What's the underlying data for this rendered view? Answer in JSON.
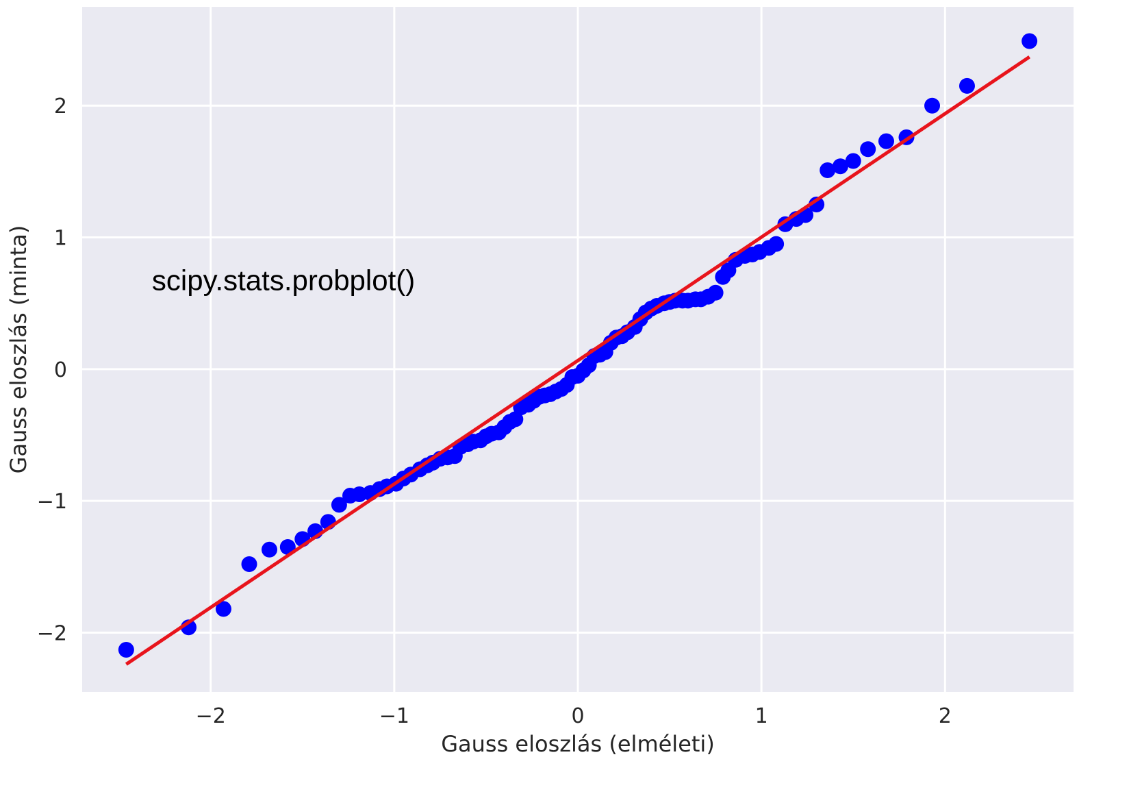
{
  "chart_data": {
    "type": "scatter",
    "title": "",
    "xlabel": "Gauss eloszlás (elméleti)",
    "ylabel": "Gauss eloszlás (minta)",
    "xlim": [
      -2.7,
      2.7
    ],
    "ylim": [
      -2.45,
      2.75
    ],
    "grid": true,
    "background_color": "#eaeaf2",
    "grid_color": "#ffffff",
    "xticks": [
      -2,
      -1,
      0,
      1,
      2
    ],
    "xtick_labels": [
      "−2",
      "−1",
      "0",
      "1",
      "2"
    ],
    "yticks": [
      -2,
      -1,
      0,
      1,
      2
    ],
    "ytick_labels": [
      "−2",
      "−1",
      "0",
      "1",
      "2"
    ],
    "annotation": {
      "text": "scipy.stats.probplot()",
      "x": -2.32,
      "y": 0.6
    },
    "series": [
      {
        "type": "scatter",
        "color": "#0000ff",
        "points": [
          [
            -2.46,
            -2.13
          ],
          [
            -2.12,
            -1.96
          ],
          [
            -1.93,
            -1.82
          ],
          [
            -1.79,
            -1.48
          ],
          [
            -1.68,
            -1.37
          ],
          [
            -1.58,
            -1.35
          ],
          [
            -1.5,
            -1.29
          ],
          [
            -1.43,
            -1.23
          ],
          [
            -1.36,
            -1.16
          ],
          [
            -1.3,
            -1.03
          ],
          [
            -1.24,
            -0.96
          ],
          [
            -1.19,
            -0.95
          ],
          [
            -1.13,
            -0.94
          ],
          [
            -1.08,
            -0.91
          ],
          [
            -1.04,
            -0.89
          ],
          [
            -0.99,
            -0.87
          ],
          [
            -0.95,
            -0.83
          ],
          [
            -0.91,
            -0.8
          ],
          [
            -0.86,
            -0.76
          ],
          [
            -0.82,
            -0.73
          ],
          [
            -0.79,
            -0.71
          ],
          [
            -0.75,
            -0.68
          ],
          [
            -0.71,
            -0.67
          ],
          [
            -0.67,
            -0.66
          ],
          [
            -0.64,
            -0.59
          ],
          [
            -0.6,
            -0.57
          ],
          [
            -0.57,
            -0.55
          ],
          [
            -0.53,
            -0.54
          ],
          [
            -0.5,
            -0.51
          ],
          [
            -0.47,
            -0.49
          ],
          [
            -0.43,
            -0.48
          ],
          [
            -0.4,
            -0.44
          ],
          [
            -0.37,
            -0.4
          ],
          [
            -0.34,
            -0.38
          ],
          [
            -0.31,
            -0.29
          ],
          [
            -0.27,
            -0.27
          ],
          [
            -0.24,
            -0.24
          ],
          [
            -0.21,
            -0.21
          ],
          [
            -0.18,
            -0.2
          ],
          [
            -0.15,
            -0.19
          ],
          [
            -0.12,
            -0.17
          ],
          [
            -0.09,
            -0.15
          ],
          [
            -0.06,
            -0.12
          ],
          [
            -0.03,
            -0.06
          ],
          [
            0.0,
            -0.05
          ],
          [
            0.03,
            -0.01
          ],
          [
            0.06,
            0.03
          ],
          [
            0.09,
            0.1
          ],
          [
            0.12,
            0.11
          ],
          [
            0.15,
            0.13
          ],
          [
            0.18,
            0.2
          ],
          [
            0.21,
            0.24
          ],
          [
            0.24,
            0.25
          ],
          [
            0.27,
            0.28
          ],
          [
            0.31,
            0.32
          ],
          [
            0.34,
            0.38
          ],
          [
            0.37,
            0.43
          ],
          [
            0.4,
            0.46
          ],
          [
            0.43,
            0.48
          ],
          [
            0.47,
            0.5
          ],
          [
            0.5,
            0.51
          ],
          [
            0.53,
            0.52
          ],
          [
            0.57,
            0.52
          ],
          [
            0.6,
            0.52
          ],
          [
            0.64,
            0.53
          ],
          [
            0.67,
            0.53
          ],
          [
            0.71,
            0.55
          ],
          [
            0.75,
            0.58
          ],
          [
            0.79,
            0.7
          ],
          [
            0.82,
            0.75
          ],
          [
            0.86,
            0.83
          ],
          [
            0.91,
            0.86
          ],
          [
            0.95,
            0.87
          ],
          [
            0.99,
            0.89
          ],
          [
            1.04,
            0.92
          ],
          [
            1.08,
            0.95
          ],
          [
            1.13,
            1.1
          ],
          [
            1.19,
            1.14
          ],
          [
            1.24,
            1.17
          ],
          [
            1.3,
            1.25
          ],
          [
            1.36,
            1.51
          ],
          [
            1.43,
            1.54
          ],
          [
            1.5,
            1.58
          ],
          [
            1.58,
            1.67
          ],
          [
            1.68,
            1.73
          ],
          [
            1.79,
            1.76
          ],
          [
            1.93,
            2.0
          ],
          [
            2.12,
            2.15
          ],
          [
            2.46,
            2.49
          ]
        ]
      },
      {
        "type": "line",
        "color": "#e8141c",
        "points": [
          [
            -2.46,
            -2.24
          ],
          [
            2.46,
            2.37
          ]
        ]
      }
    ]
  }
}
